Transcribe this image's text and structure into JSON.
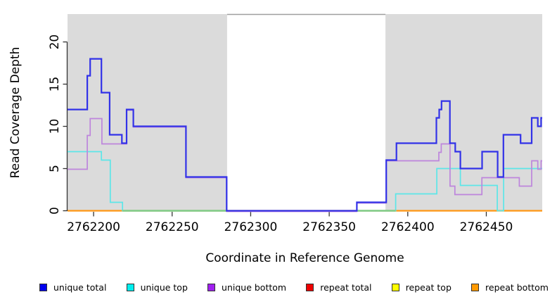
{
  "colors": {
    "background": "#ffffff",
    "shade": "#dbdbdb",
    "gap_line": "#9e9e9e",
    "axis": "#333333",
    "text": "#000000",
    "zero_blend_green": "#7fcd8c",
    "swatch_border": "#333333"
  },
  "chart_data": {
    "type": "line",
    "step_mode": "post",
    "title": "",
    "xlabel": "Coordinate in Reference Genome",
    "ylabel": "Read Coverage Depth",
    "xlim": [
      2762183.4,
      2762485.6
    ],
    "ylim": [
      0,
      23.3
    ],
    "x_ticks": [
      2762200,
      2762250,
      2762300,
      2762350,
      2762400,
      2762450
    ],
    "y_ticks": [
      0,
      5,
      10,
      15,
      20
    ],
    "grid": false,
    "legend_position": "bottom",
    "shaded_regions": [
      [
        2762183.4,
        2762285.0
      ],
      [
        2762385.8,
        2762485.6
      ]
    ],
    "gap_top_line": [
      2762285.0,
      2762385.8
    ],
    "zero_line_green_segments": [
      [
        2762218.4,
        2762284.7
      ],
      [
        2762367.6,
        2762392.3
      ]
    ],
    "series": [
      {
        "id": "unique_total",
        "name": "unique total",
        "line_color": "#3232e8",
        "line_width": 2.2,
        "steps": [
          [
            2762183.4,
            12
          ],
          [
            2762196.0,
            16
          ],
          [
            2762197.8,
            18
          ],
          [
            2762205.0,
            14
          ],
          [
            2762210.2,
            9
          ],
          [
            2762218.0,
            8
          ],
          [
            2762221.0,
            12
          ],
          [
            2762225.3,
            10
          ],
          [
            2762258.8,
            4
          ],
          [
            2762284.7,
            0
          ],
          [
            2762367.6,
            1
          ],
          [
            2762386.3,
            6
          ],
          [
            2762392.8,
            8
          ],
          [
            2762418.2,
            11
          ],
          [
            2762420.0,
            12
          ],
          [
            2762421.5,
            13
          ],
          [
            2762426.8,
            8
          ],
          [
            2762430.2,
            7
          ],
          [
            2762433.5,
            5
          ],
          [
            2762447.3,
            7
          ],
          [
            2762457.2,
            4
          ],
          [
            2762460.9,
            9
          ],
          [
            2762471.8,
            8
          ],
          [
            2762478.9,
            11
          ],
          [
            2762482.8,
            10
          ],
          [
            2762484.9,
            11
          ]
        ]
      },
      {
        "id": "unique_top",
        "name": "unique top",
        "line_color": "#5ce6e8",
        "line_width": 1.7,
        "steps": [
          [
            2762183.4,
            7
          ],
          [
            2762205.0,
            6
          ],
          [
            2762210.6,
            1
          ],
          [
            2762218.4,
            0
          ],
          [
            2762392.3,
            2
          ],
          [
            2762418.5,
            5
          ],
          [
            2762433.5,
            3
          ],
          [
            2762457.0,
            0
          ],
          [
            2762461.0,
            5
          ]
        ]
      },
      {
        "id": "unique_bottom",
        "name": "unique bottom",
        "line_color": "#bd85dc",
        "line_width": 1.7,
        "steps": [
          [
            2762183.4,
            5
          ],
          [
            2762196.0,
            9
          ],
          [
            2762197.8,
            11
          ],
          [
            2762205.3,
            8
          ],
          [
            2762221.0,
            12
          ],
          [
            2762225.3,
            10
          ],
          [
            2762258.8,
            4
          ],
          [
            2762284.7,
            0
          ],
          [
            2762367.6,
            1
          ],
          [
            2762386.3,
            6
          ],
          [
            2762419.8,
            7
          ],
          [
            2762421.3,
            8
          ],
          [
            2762426.9,
            3
          ],
          [
            2762430.0,
            2
          ],
          [
            2762447.2,
            4
          ],
          [
            2762471.0,
            3
          ],
          [
            2762478.9,
            6
          ],
          [
            2762482.8,
            5
          ],
          [
            2762484.9,
            6
          ]
        ]
      },
      {
        "id": "repeat_total",
        "name": "repeat total",
        "line_color": "#e60000",
        "line_width": 1.5,
        "steps": [
          [
            2762183.4,
            0
          ]
        ]
      },
      {
        "id": "repeat_top",
        "name": "repeat top",
        "line_color": "#ffff00",
        "line_width": 1.5,
        "steps": [
          [
            2762183.4,
            0
          ]
        ]
      },
      {
        "id": "repeat_bottom",
        "name": "repeat bottom",
        "line_color": "#ff9714",
        "line_width": 2.2,
        "steps": [
          [
            2762183.4,
            0
          ]
        ]
      }
    ]
  },
  "legend": {
    "items": [
      {
        "label": "unique total",
        "color": "#0000ee"
      },
      {
        "label": "unique top",
        "color": "#00eeee"
      },
      {
        "label": "unique bottom",
        "color": "#a020f0"
      },
      {
        "label": "repeat total",
        "color": "#ee0000"
      },
      {
        "label": "repeat top",
        "color": "#ffff00"
      },
      {
        "label": "repeat bottom",
        "color": "#ff9900"
      }
    ]
  }
}
